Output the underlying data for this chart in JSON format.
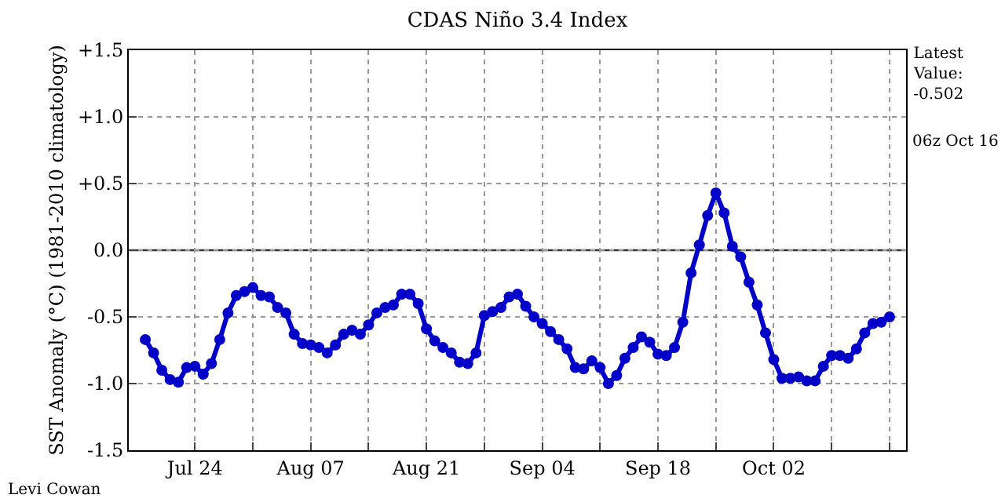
{
  "chart_data": {
    "type": "line",
    "title": "CDAS Niño 3.4 Index",
    "ylabel": "SST Anomaly (°C) (1981-2010 climatology)",
    "annotations": [
      "Latest\nValue:\n-0.502",
      "06z Oct 16",
      "Levi Cowan"
    ],
    "x": [
      "--07-18",
      "--07-19",
      "--07-20",
      "--07-21",
      "--07-22",
      "--07-23",
      "--07-24",
      "--07-25",
      "--07-26",
      "--07-27",
      "--07-28",
      "--07-29",
      "--07-30",
      "--07-31",
      "--08-01",
      "--08-02",
      "--08-03",
      "--08-04",
      "--08-05",
      "--08-06",
      "--08-07",
      "--08-08",
      "--08-09",
      "--08-10",
      "--08-11",
      "--08-12",
      "--08-13",
      "--08-14",
      "--08-15",
      "--08-16",
      "--08-17",
      "--08-18",
      "--08-19",
      "--08-20",
      "--08-21",
      "--08-22",
      "--08-23",
      "--08-24",
      "--08-25",
      "--08-26",
      "--08-27",
      "--08-28",
      "--08-29",
      "--08-30",
      "--08-31",
      "--09-01",
      "--09-02",
      "--09-03",
      "--09-04",
      "--09-05",
      "--09-06",
      "--09-07",
      "--09-08",
      "--09-09",
      "--09-10",
      "--09-11",
      "--09-12",
      "--09-13",
      "--09-14",
      "--09-15",
      "--09-16",
      "--09-17",
      "--09-18",
      "--09-19",
      "--09-20",
      "--09-21",
      "--09-22",
      "--09-23",
      "--09-24",
      "--09-25",
      "--09-26",
      "--09-27",
      "--09-28",
      "--09-29",
      "--09-30",
      "--10-01",
      "--10-02",
      "--10-03",
      "--10-04",
      "--10-05",
      "--10-06",
      "--10-07",
      "--10-08",
      "--10-09",
      "--10-10",
      "--10-11",
      "--10-12",
      "--10-13",
      "--10-14",
      "--10-15",
      "--10-16"
    ],
    "series": [
      {
        "color": "#0000c8",
        "values": [
          -0.67,
          -0.77,
          -0.9,
          -0.97,
          -0.99,
          -0.88,
          -0.87,
          -0.93,
          -0.85,
          -0.67,
          -0.47,
          -0.34,
          -0.31,
          -0.28,
          -0.34,
          -0.35,
          -0.43,
          -0.47,
          -0.63,
          -0.7,
          -0.71,
          -0.73,
          -0.77,
          -0.71,
          -0.63,
          -0.6,
          -0.63,
          -0.56,
          -0.47,
          -0.43,
          -0.41,
          -0.33,
          -0.33,
          -0.4,
          -0.59,
          -0.68,
          -0.73,
          -0.77,
          -0.84,
          -0.85,
          -0.77,
          -0.49,
          -0.46,
          -0.43,
          -0.35,
          -0.33,
          -0.42,
          -0.5,
          -0.55,
          -0.61,
          -0.67,
          -0.74,
          -0.88,
          -0.89,
          -0.83,
          -0.88,
          -1.0,
          -0.94,
          -0.81,
          -0.73,
          -0.65,
          -0.69,
          -0.78,
          -0.79,
          -0.73,
          -0.54,
          -0.17,
          0.04,
          0.26,
          0.43,
          0.28,
          0.03,
          -0.05,
          -0.24,
          -0.41,
          -0.62,
          -0.82,
          -0.96,
          -0.96,
          -0.95,
          -0.98,
          -0.98,
          -0.87,
          -0.79,
          -0.79,
          -0.81,
          -0.74,
          -0.62,
          -0.55,
          -0.54,
          -0.5
        ]
      }
    ],
    "xlim": [
      "--07-16",
      "--10-18"
    ],
    "xticks": [
      {
        "value": "--07-24",
        "label": "Jul 24"
      },
      {
        "value": "--07-31",
        "label": null
      },
      {
        "value": "--08-07",
        "label": "Aug 07"
      },
      {
        "value": "--08-14",
        "label": null
      },
      {
        "value": "--08-21",
        "label": "Aug 21"
      },
      {
        "value": "--08-28",
        "label": null
      },
      {
        "value": "--09-04",
        "label": "Sep 04"
      },
      {
        "value": "--09-11",
        "label": null
      },
      {
        "value": "--09-18",
        "label": "Sep 18"
      },
      {
        "value": "--09-25",
        "label": null
      },
      {
        "value": "--10-02",
        "label": "Oct 02"
      },
      {
        "value": "--10-09",
        "label": null
      },
      {
        "value": "--10-16",
        "label": null
      }
    ],
    "ylim": [
      -1.5,
      1.5
    ],
    "yticks": [
      {
        "value": -1.5,
        "label": "-1.5"
      },
      {
        "value": -1.0,
        "label": "-1.0"
      },
      {
        "value": -0.5,
        "label": "-0.5"
      },
      {
        "value": 0,
        "label": "0.0"
      },
      {
        "value": 0.5,
        "label": "+0.5"
      },
      {
        "value": 1.0,
        "label": "+1.0"
      },
      {
        "value": 1.5,
        "label": "+1.5"
      }
    ],
    "ref_lines": [
      {
        "axis": "y",
        "value": 0,
        "color": "#333333",
        "line_style": "solid"
      }
    ],
    "grid": true,
    "marker": "circle",
    "line_style": "solid"
  }
}
